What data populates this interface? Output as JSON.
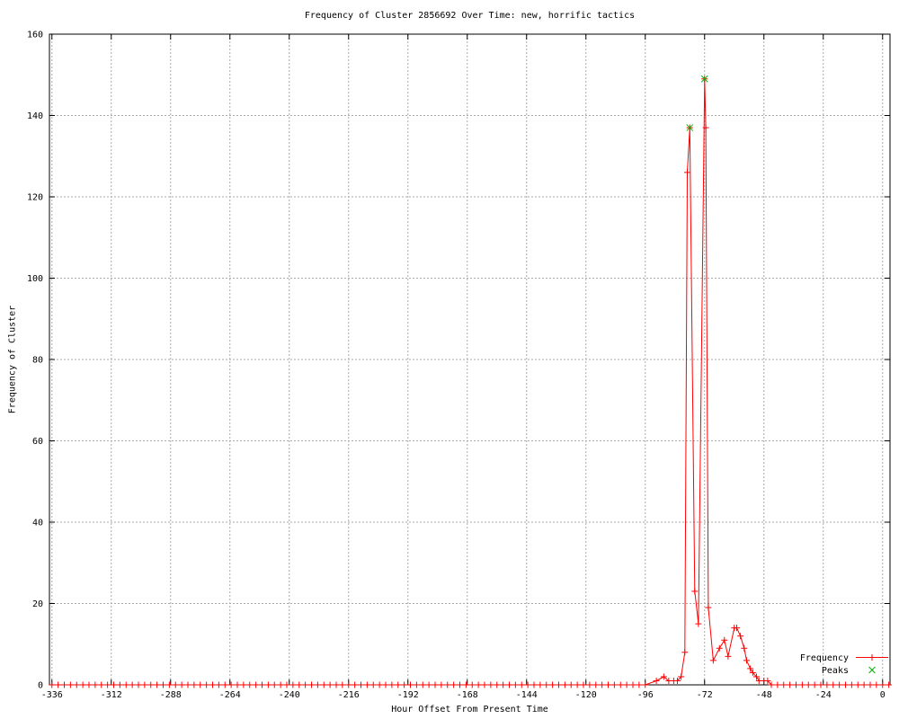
{
  "chart_data": {
    "type": "line",
    "title": "Frequency of Cluster 2856692 Over Time: new, horrific tactics",
    "xlabel": "Hour Offset From Present Time",
    "ylabel": "Frequency of Cluster",
    "xlim": [
      -337,
      3
    ],
    "ylim": [
      0,
      160
    ],
    "xticks": [
      -336,
      -312,
      -288,
      -264,
      -240,
      -216,
      -192,
      -168,
      -144,
      -120,
      -96,
      -72,
      -48,
      -24,
      0
    ],
    "yticks": [
      0,
      20,
      40,
      60,
      80,
      100,
      120,
      140,
      160
    ],
    "grid": true,
    "background_color": "#ffffff",
    "border_color": "#000000",
    "grid_color": "#aaaaaa",
    "legend_position": "inside-bottom-right",
    "series": [
      {
        "name": "Frequency",
        "color": "#ff0000",
        "marker": "plus",
        "line": true,
        "zero_ranges": [
          {
            "start": -336,
            "end": -94,
            "step": 2.5,
            "value": 0
          },
          {
            "start": -45,
            "end": 2.5,
            "step": 2.5,
            "value": 0
          }
        ],
        "points": [
          [
            -91.5,
            1
          ],
          [
            -88.5,
            2
          ],
          [
            -86.5,
            1
          ],
          [
            -84.5,
            1
          ],
          [
            -83,
            1
          ],
          [
            -81.5,
            2
          ],
          [
            -80,
            8
          ],
          [
            -79,
            126
          ],
          [
            -78,
            137
          ],
          [
            -76,
            23
          ],
          [
            -74.5,
            15
          ],
          [
            -72,
            149
          ],
          [
            -71.5,
            137
          ],
          [
            -70.5,
            19
          ],
          [
            -68.5,
            6
          ],
          [
            -66,
            9
          ],
          [
            -64,
            11
          ],
          [
            -62.5,
            7
          ],
          [
            -60,
            14
          ],
          [
            -59,
            14
          ],
          [
            -57.5,
            12
          ],
          [
            -56,
            9
          ],
          [
            -55,
            6
          ],
          [
            -53.5,
            4
          ],
          [
            -52.5,
            3
          ],
          [
            -51,
            2
          ],
          [
            -50,
            1
          ],
          [
            -48,
            1
          ],
          [
            -46.5,
            1
          ]
        ]
      },
      {
        "name": "Peaks",
        "color": "#00b400",
        "marker": "cross",
        "line": false,
        "points": [
          [
            -78,
            137
          ],
          [
            -72,
            149
          ]
        ]
      }
    ]
  }
}
